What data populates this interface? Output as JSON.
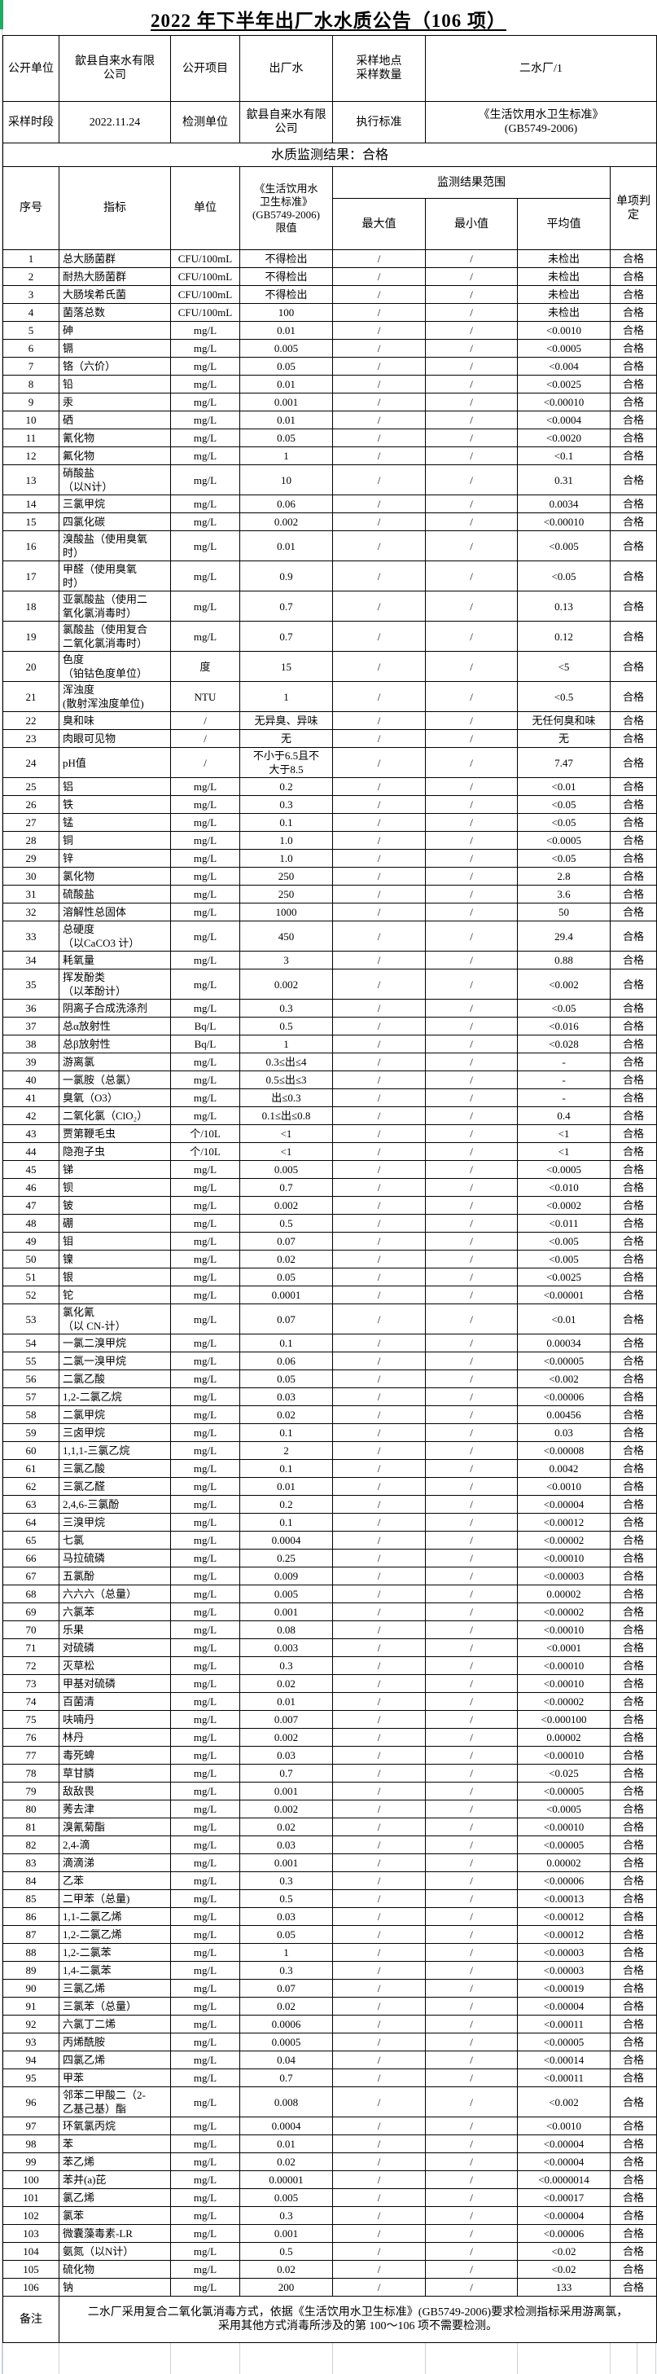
{
  "title": "2022 年下半年出厂水水质公告（106 项）",
  "colors": {
    "accent_green": "#21ab63",
    "border_black": "#000000",
    "grid_light": "#cdd1d9",
    "background": "#ffffff"
  },
  "info": {
    "rows": [
      {
        "c1": "公开单位",
        "v1": "歙县自来水有限\n公司",
        "c2": "公开项目",
        "v2": "出厂水",
        "c3": "采样地点\n采样数量",
        "v3": "二水厂/1"
      },
      {
        "c1": "采样时段",
        "v1": "2022.11.24",
        "c2": "检测单位",
        "v2": "歙县自来水有限\n公司",
        "c3": "执行标准",
        "v3": "《生活饮用水卫生标准》\n(GB5749-2006)"
      }
    ]
  },
  "result_banner": "水质监测结果：合格",
  "table": {
    "headers": {
      "seq": "序号",
      "indicator": "指标",
      "unit": "单位",
      "limit": "《生活饮用水\n卫生标准》\n(GB5749-2006)\n限值",
      "range_group": "监测结果范围",
      "max": "最大值",
      "min": "最小值",
      "avg": "平均值",
      "judge": "单项判定"
    },
    "rows": [
      [
        "1",
        "总大肠菌群",
        "CFU/100mL",
        "不得检出",
        "/",
        "/",
        "未检出",
        "合格"
      ],
      [
        "2",
        "耐热大肠菌群",
        "CFU/100mL",
        "不得检出",
        "/",
        "/",
        "未检出",
        "合格"
      ],
      [
        "3",
        "大肠埃希氏菌",
        "CFU/100mL",
        "不得检出",
        "/",
        "/",
        "未检出",
        "合格"
      ],
      [
        "4",
        "菌落总数",
        "CFU/100mL",
        "100",
        "/",
        "/",
        "未检出",
        "合格"
      ],
      [
        "5",
        "砷",
        "mg/L",
        "0.01",
        "/",
        "/",
        "<0.0010",
        "合格"
      ],
      [
        "6",
        "镉",
        "mg/L",
        "0.005",
        "/",
        "/",
        "<0.0005",
        "合格"
      ],
      [
        "7",
        "铬（六价）",
        "mg/L",
        "0.05",
        "/",
        "/",
        "<0.004",
        "合格"
      ],
      [
        "8",
        "铅",
        "mg/L",
        "0.01",
        "/",
        "/",
        "<0.0025",
        "合格"
      ],
      [
        "9",
        "汞",
        "mg/L",
        "0.001",
        "/",
        "/",
        "<0.00010",
        "合格"
      ],
      [
        "10",
        "硒",
        "mg/L",
        "0.01",
        "/",
        "/",
        "<0.0004",
        "合格"
      ],
      [
        "11",
        "氰化物",
        "mg/L",
        "0.05",
        "/",
        "/",
        "<0.0020",
        "合格"
      ],
      [
        "12",
        "氟化物",
        "mg/L",
        "1",
        "/",
        "/",
        "<0.1",
        "合格"
      ],
      [
        "13",
        "硝酸盐\n（以N计）",
        "mg/L",
        "10",
        "/",
        "/",
        "0.31",
        "合格"
      ],
      [
        "14",
        "三氯甲烷",
        "mg/L",
        "0.06",
        "/",
        "/",
        "0.0034",
        "合格"
      ],
      [
        "15",
        "四氯化碳",
        "mg/L",
        "0.002",
        "/",
        "/",
        "<0.00010",
        "合格"
      ],
      [
        "16",
        "溴酸盐（使用臭氧\n时）",
        "mg/L",
        "0.01",
        "/",
        "/",
        "<0.005",
        "合格"
      ],
      [
        "17",
        "甲醛（使用臭氧\n时）",
        "mg/L",
        "0.9",
        "/",
        "/",
        "<0.05",
        "合格"
      ],
      [
        "18",
        "亚氯酸盐（使用二\n氧化氯消毒时）",
        "mg/L",
        "0.7",
        "/",
        "/",
        "0.13",
        "合格"
      ],
      [
        "19",
        "氯酸盐（使用复合\n二氧化氯消毒时）",
        "mg/L",
        "0.7",
        "/",
        "/",
        "0.12",
        "合格"
      ],
      [
        "20",
        "色度\n（铂钴色度单位）",
        "度",
        "15",
        "/",
        "/",
        "<5",
        "合格"
      ],
      [
        "21",
        "浑浊度\n(散射浑浊度单位)",
        "NTU",
        "1",
        "/",
        "/",
        "<0.5",
        "合格"
      ],
      [
        "22",
        "臭和味",
        "/",
        "无异臭、异味",
        "/",
        "/",
        "无任何臭和味",
        "合格"
      ],
      [
        "23",
        "肉眼可见物",
        "/",
        "无",
        "/",
        "/",
        "无",
        "合格"
      ],
      [
        "24",
        "pH值",
        "/",
        "不小于6.5且不\n大于8.5",
        "/",
        "/",
        "7.47",
        "合格"
      ],
      [
        "25",
        "铝",
        "mg/L",
        "0.2",
        "/",
        "/",
        "<0.01",
        "合格"
      ],
      [
        "26",
        "铁",
        "mg/L",
        "0.3",
        "/",
        "/",
        "<0.05",
        "合格"
      ],
      [
        "27",
        "锰",
        "mg/L",
        "0.1",
        "/",
        "/",
        "<0.05",
        "合格"
      ],
      [
        "28",
        "铜",
        "mg/L",
        "1.0",
        "/",
        "/",
        "<0.0005",
        "合格"
      ],
      [
        "29",
        "锌",
        "mg/L",
        "1.0",
        "/",
        "/",
        "<0.05",
        "合格"
      ],
      [
        "30",
        "氯化物",
        "mg/L",
        "250",
        "/",
        "/",
        "2.8",
        "合格"
      ],
      [
        "31",
        "硫酸盐",
        "mg/L",
        "250",
        "/",
        "/",
        "3.6",
        "合格"
      ],
      [
        "32",
        "溶解性总固体",
        "mg/L",
        "1000",
        "/",
        "/",
        "50",
        "合格"
      ],
      [
        "33",
        "总硬度\n（以CaCO3 计）",
        "mg/L",
        "450",
        "/",
        "/",
        "29.4",
        "合格"
      ],
      [
        "34",
        "耗氧量",
        "mg/L",
        "3",
        "/",
        "/",
        "0.88",
        "合格"
      ],
      [
        "35",
        "挥发酚类\n（以苯酚计）",
        "mg/L",
        "0.002",
        "/",
        "/",
        "<0.002",
        "合格"
      ],
      [
        "36",
        "阴离子合成洗涤剂",
        "mg/L",
        "0.3",
        "/",
        "/",
        "<0.05",
        "合格"
      ],
      [
        "37",
        "总α放射性",
        "Bq/L",
        "0.5",
        "/",
        "/",
        "<0.016",
        "合格"
      ],
      [
        "38",
        "总β放射性",
        "Bq/L",
        "1",
        "/",
        "/",
        "<0.028",
        "合格"
      ],
      [
        "39",
        "游离氯",
        "mg/L",
        "0.3≤出≤4",
        "/",
        "/",
        "-",
        "合格"
      ],
      [
        "40",
        "一氯胺（总氯）",
        "mg/L",
        "0.5≤出≤3",
        "/",
        "/",
        "-",
        "合格"
      ],
      [
        "41",
        "臭氧（O3）",
        "mg/L",
        "出≤0.3",
        "/",
        "/",
        "-",
        "合格"
      ],
      [
        "42",
        "二氧化氯（ClO₂）",
        "mg/L",
        "0.1≤出≤0.8",
        "/",
        "/",
        "0.4",
        "合格"
      ],
      [
        "43",
        "贾第鞭毛虫",
        "个/10L",
        "<1",
        "/",
        "/",
        "<1",
        "合格"
      ],
      [
        "44",
        "隐孢子虫",
        "个/10L",
        "<1",
        "/",
        "/",
        "<1",
        "合格"
      ],
      [
        "45",
        "锑",
        "mg/L",
        "0.005",
        "/",
        "/",
        "<0.0005",
        "合格"
      ],
      [
        "46",
        "钡",
        "mg/L",
        "0.7",
        "/",
        "/",
        "<0.010",
        "合格"
      ],
      [
        "47",
        "铍",
        "mg/L",
        "0.002",
        "/",
        "/",
        "<0.0002",
        "合格"
      ],
      [
        "48",
        "硼",
        "mg/L",
        "0.5",
        "/",
        "/",
        "<0.011",
        "合格"
      ],
      [
        "49",
        "钼",
        "mg/L",
        "0.07",
        "/",
        "/",
        "<0.005",
        "合格"
      ],
      [
        "50",
        "镍",
        "mg/L",
        "0.02",
        "/",
        "/",
        "<0.005",
        "合格"
      ],
      [
        "51",
        "银",
        "mg/L",
        "0.05",
        "/",
        "/",
        "<0.0025",
        "合格"
      ],
      [
        "52",
        "铊",
        "mg/L",
        "0.0001",
        "/",
        "/",
        "<0.00001",
        "合格"
      ],
      [
        "53",
        "氯化氰\n（以 CN-计）",
        "mg/L",
        "0.07",
        "/",
        "/",
        "<0.01",
        "合格"
      ],
      [
        "54",
        "一氯二溴甲烷",
        "mg/L",
        "0.1",
        "/",
        "/",
        "0.00034",
        "合格"
      ],
      [
        "55",
        "二氯一溴甲烷",
        "mg/L",
        "0.06",
        "/",
        "/",
        "<0.00005",
        "合格"
      ],
      [
        "56",
        "二氯乙酸",
        "mg/L",
        "0.05",
        "/",
        "/",
        "<0.002",
        "合格"
      ],
      [
        "57",
        "1,2-二氯乙烷",
        "mg/L",
        "0.03",
        "/",
        "/",
        "<0.00006",
        "合格"
      ],
      [
        "58",
        "二氯甲烷",
        "mg/L",
        "0.02",
        "/",
        "/",
        "0.00456",
        "合格"
      ],
      [
        "59",
        "三卤甲烷",
        "mg/L",
        "0.1",
        "/",
        "/",
        "0.03",
        "合格"
      ],
      [
        "60",
        "1,1,1-三氯乙烷",
        "mg/L",
        "2",
        "/",
        "/",
        "<0.00008",
        "合格"
      ],
      [
        "61",
        "三氯乙酸",
        "mg/L",
        "0.1",
        "/",
        "/",
        "0.0042",
        "合格"
      ],
      [
        "62",
        "三氯乙醛",
        "mg/L",
        "0.01",
        "/",
        "/",
        "<0.0010",
        "合格"
      ],
      [
        "63",
        "2,4,6-三氯酚",
        "mg/L",
        "0.2",
        "/",
        "/",
        "<0.00004",
        "合格"
      ],
      [
        "64",
        "三溴甲烷",
        "mg/L",
        "0.1",
        "/",
        "/",
        "<0.00012",
        "合格"
      ],
      [
        "65",
        "七氯",
        "mg/L",
        "0.0004",
        "/",
        "/",
        "<0.00002",
        "合格"
      ],
      [
        "66",
        "马拉硫磷",
        "mg/L",
        "0.25",
        "/",
        "/",
        "<0.00010",
        "合格"
      ],
      [
        "67",
        "五氯酚",
        "mg/L",
        "0.009",
        "/",
        "/",
        "<0.00003",
        "合格"
      ],
      [
        "68",
        "六六六（总量）",
        "mg/L",
        "0.005",
        "/",
        "/",
        "0.00002",
        "合格"
      ],
      [
        "69",
        "六氯苯",
        "mg/L",
        "0.001",
        "/",
        "/",
        "<0.00002",
        "合格"
      ],
      [
        "70",
        "乐果",
        "mg/L",
        "0.08",
        "/",
        "/",
        "<0.00010",
        "合格"
      ],
      [
        "71",
        "对硫磷",
        "mg/L",
        "0.003",
        "/",
        "/",
        "<0.0001",
        "合格"
      ],
      [
        "72",
        "灭草松",
        "mg/L",
        "0.3",
        "/",
        "/",
        "<0.00010",
        "合格"
      ],
      [
        "73",
        "甲基对硫磷",
        "mg/L",
        "0.02",
        "/",
        "/",
        "<0.00010",
        "合格"
      ],
      [
        "74",
        "百菌清",
        "mg/L",
        "0.01",
        "/",
        "/",
        "<0.00002",
        "合格"
      ],
      [
        "75",
        "呋喃丹",
        "mg/L",
        "0.007",
        "/",
        "/",
        "<0.000100",
        "合格"
      ],
      [
        "76",
        "林丹",
        "mg/L",
        "0.002",
        "/",
        "/",
        "0.00002",
        "合格"
      ],
      [
        "77",
        "毒死蜱",
        "mg/L",
        "0.03",
        "/",
        "/",
        "<0.00010",
        "合格"
      ],
      [
        "78",
        "草甘膦",
        "mg/L",
        "0.7",
        "/",
        "/",
        "<0.025",
        "合格"
      ],
      [
        "79",
        "敌敌畏",
        "mg/L",
        "0.001",
        "/",
        "/",
        "<0.00005",
        "合格"
      ],
      [
        "80",
        "莠去津",
        "mg/L",
        "0.002",
        "/",
        "/",
        "<0.0005",
        "合格"
      ],
      [
        "81",
        "溴氰菊酯",
        "mg/L",
        "0.02",
        "/",
        "/",
        "<0.00010",
        "合格"
      ],
      [
        "82",
        "2,4-滴",
        "mg/L",
        "0.03",
        "/",
        "/",
        "<0.00005",
        "合格"
      ],
      [
        "83",
        "滴滴涕",
        "mg/L",
        "0.001",
        "/",
        "/",
        "0.00002",
        "合格"
      ],
      [
        "84",
        "乙苯",
        "mg/L",
        "0.3",
        "/",
        "/",
        "<0.00006",
        "合格"
      ],
      [
        "85",
        "二甲苯（总量)",
        "mg/L",
        "0.5",
        "/",
        "/",
        "<0.00013",
        "合格"
      ],
      [
        "86",
        "1,1-二氯乙烯",
        "mg/L",
        "0.03",
        "/",
        "/",
        "<0.00012",
        "合格"
      ],
      [
        "87",
        "1,2-二氯乙烯",
        "mg/L",
        "0.05",
        "/",
        "/",
        "<0.00012",
        "合格"
      ],
      [
        "88",
        "1,2-二氯苯",
        "mg/L",
        "1",
        "/",
        "/",
        "<0.00003",
        "合格"
      ],
      [
        "89",
        "1,4-二氯苯",
        "mg/L",
        "0.3",
        "/",
        "/",
        "<0.00003",
        "合格"
      ],
      [
        "90",
        "三氯乙烯",
        "mg/L",
        "0.07",
        "/",
        "/",
        "<0.00019",
        "合格"
      ],
      [
        "91",
        "三氯苯（总量）",
        "mg/L",
        "0.02",
        "/",
        "/",
        "<0.00004",
        "合格"
      ],
      [
        "92",
        "六氯丁二烯",
        "mg/L",
        "0.0006",
        "/",
        "/",
        "<0.00011",
        "合格"
      ],
      [
        "93",
        "丙烯酰胺",
        "mg/L",
        "0.0005",
        "/",
        "/",
        "<0.00005",
        "合格"
      ],
      [
        "94",
        "四氯乙烯",
        "mg/L",
        "0.04",
        "/",
        "/",
        "<0.00014",
        "合格"
      ],
      [
        "95",
        "甲苯",
        "mg/L",
        "0.7",
        "/",
        "/",
        "<0.00011",
        "合格"
      ],
      [
        "96",
        "邻苯二甲酸二（2-\n乙基己基）酯",
        "mg/L",
        "0.008",
        "/",
        "/",
        "<0.002",
        "合格"
      ],
      [
        "97",
        "环氧氯丙烷",
        "mg/L",
        "0.0004",
        "/",
        "/",
        "<0.0010",
        "合格"
      ],
      [
        "98",
        "苯",
        "mg/L",
        "0.01",
        "/",
        "/",
        "<0.00004",
        "合格"
      ],
      [
        "99",
        "苯乙烯",
        "mg/L",
        "0.02",
        "/",
        "/",
        "<0.00004",
        "合格"
      ],
      [
        "100",
        "苯并(a)芘",
        "mg/L",
        "0.00001",
        "/",
        "/",
        "<0.0000014",
        "合格"
      ],
      [
        "101",
        "氯乙烯",
        "mg/L",
        "0.005",
        "/",
        "/",
        "<0.00017",
        "合格"
      ],
      [
        "102",
        "氯苯",
        "mg/L",
        "0.3",
        "/",
        "/",
        "<0.00004",
        "合格"
      ],
      [
        "103",
        "微囊藻毒素-LR",
        "mg/L",
        "0.001",
        "/",
        "/",
        "<0.00006",
        "合格"
      ],
      [
        "104",
        "氨氮（以N计）",
        "mg/L",
        "0.5",
        "/",
        "/",
        "<0.02",
        "合格"
      ],
      [
        "105",
        "硫化物",
        "mg/L",
        "0.02",
        "/",
        "/",
        "<0.02",
        "合格"
      ],
      [
        "106",
        "钠",
        "mg/L",
        "200",
        "/",
        "/",
        "133",
        "合格"
      ]
    ]
  },
  "remark": {
    "label": "备注",
    "text": "二水厂采用复合二氧化氯消毒方式，依据《生活饮用水卫生标准》(GB5749-2006)要求检测指标采用游离氯，\n采用其他方式消毒所涉及的第 100～106 项不需要检测。"
  }
}
